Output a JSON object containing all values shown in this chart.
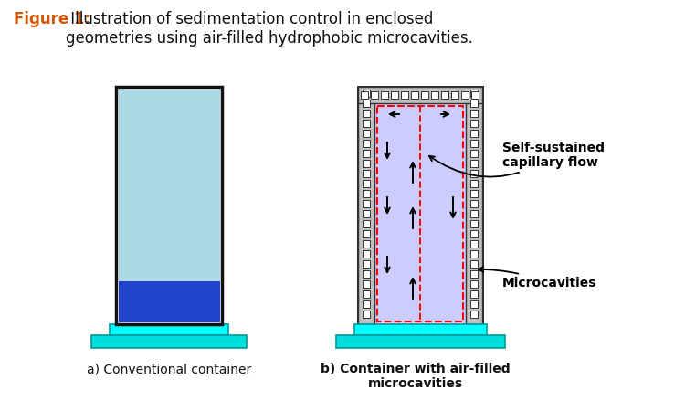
{
  "title_bold": "Figure 1:",
  "title_bold_color": "#D45500",
  "title_text": " Illustration of sedimentation control in enclosed\ngeometries using air-filled hydrophobic microcavities.",
  "title_text_color": "#111111",
  "title_fontsize": 12,
  "label_a": "a) Conventional container",
  "label_b": "b) Container with air-filled\nmicrocavities",
  "label_fontsize": 10,
  "annotation_capillary": "Self-sustained\ncapillary flow",
  "annotation_microcavities": "Microcavities",
  "annotation_fontsize": 10,
  "bg_color": "#ffffff",
  "water_light": "#ADD8E6",
  "water_mid": "#87CEEB",
  "sediment_top": "#2244CC",
  "sediment_bot": "#0000AA",
  "container_wall": "#111111",
  "base_top_color": "#00FFFF",
  "base_bot_color": "#00DDDD",
  "inner_fill": "#CCCCFF",
  "red_dashed": "#FF0000",
  "microcavity_bg": "#C0C0C0",
  "microcavity_border": "#333333",
  "microcavity_sq_fill": "#FFFFFF"
}
